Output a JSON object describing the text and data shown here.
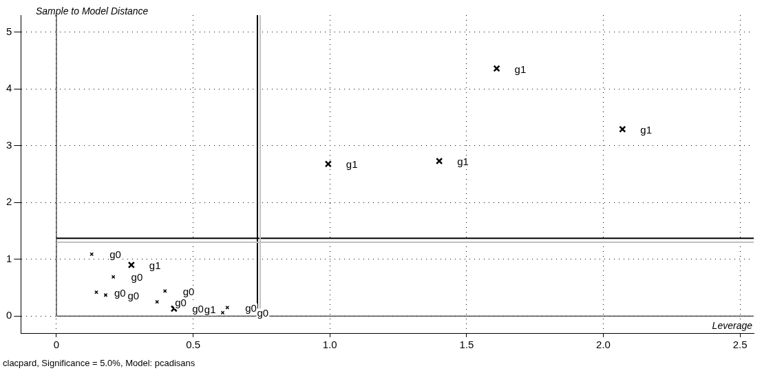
{
  "chart_data": {
    "type": "scatter",
    "xlabel": "Leverage",
    "ylabel": "Sample to Model Distance",
    "xlim": [
      -0.13,
      2.55
    ],
    "ylim": [
      -0.3,
      5.3
    ],
    "xticks": [
      0,
      0.5,
      {
        "value": 1,
        "label": "1.0"
      },
      1.5,
      {
        "value": 2,
        "label": "2.0"
      },
      2.5
    ],
    "yticks": [
      0,
      1,
      2,
      3,
      4,
      5
    ],
    "grid": true,
    "legend": false,
    "marker": "cross",
    "series": [
      {
        "name": "g0",
        "color": "#000000",
        "x": [
          0.129,
          0.208,
          0.146,
          0.18,
          0.397,
          0.368,
          0.431,
          0.625,
          0.608
        ],
        "values": [
          1.09,
          0.69,
          0.42,
          0.37,
          0.44,
          0.25,
          0.14,
          0.15,
          0.06
        ]
      },
      {
        "name": "g1",
        "color": "#000000",
        "x": [
          0.994,
          1.4,
          1.61,
          2.07,
          0.274,
          0.43
        ],
        "values": [
          2.68,
          2.73,
          4.36,
          3.29,
          0.9,
          0.13
        ]
      }
    ],
    "ref_lines": [
      {
        "axis": "x",
        "value": 0.735,
        "color": "#000000"
      },
      {
        "axis": "y",
        "value": 1.37,
        "color": "#000000"
      },
      {
        "axis": "x",
        "value": 0.745,
        "color": "#c0c0c0"
      },
      {
        "axis": "y",
        "value": 1.3,
        "color": "#c0c0c0"
      }
    ],
    "annotations": [
      "clacpard, Significance = 5.0%, Model: pcadisans"
    ]
  }
}
